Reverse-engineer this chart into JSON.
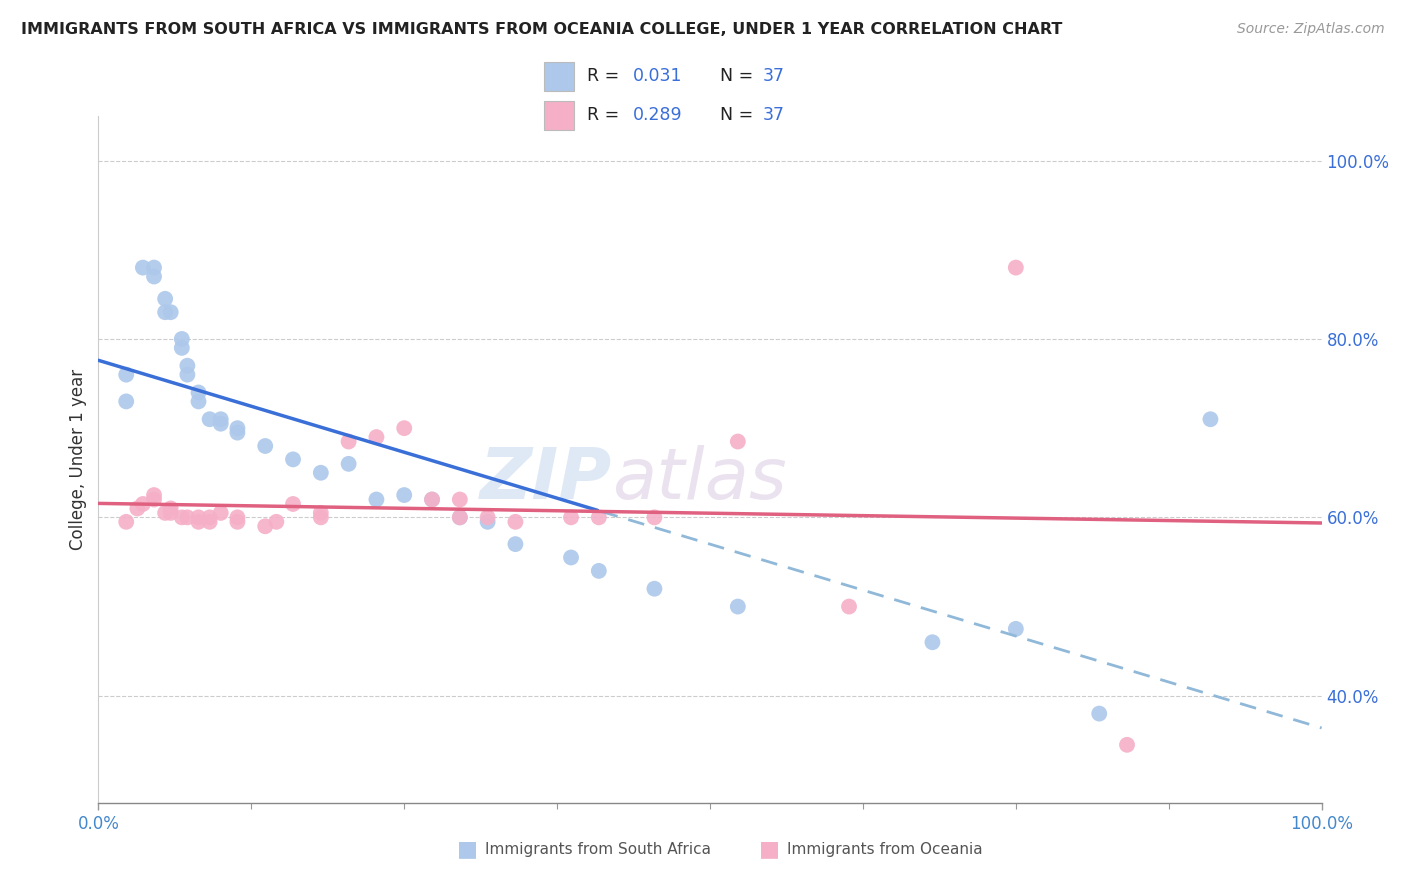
{
  "title": "IMMIGRANTS FROM SOUTH AFRICA VS IMMIGRANTS FROM OCEANIA COLLEGE, UNDER 1 YEAR CORRELATION CHART",
  "source": "Source: ZipAtlas.com",
  "ylabel": "College, Under 1 year",
  "legend_label1": "Immigrants from South Africa",
  "legend_label2": "Immigrants from Oceania",
  "R1": "0.031",
  "N1": "37",
  "R2": "0.289",
  "N2": "37",
  "color_blue": "#adc8ea",
  "color_pink": "#f5b0c8",
  "line_color_blue": "#3a6fd8",
  "line_color_pink": "#e06080",
  "line_color_dash": "#90b8d8",
  "watermark_zip": "ZIP",
  "watermark_atlas": "atlas",
  "yaxis_labels": [
    "40.0%",
    "60.0%",
    "80.0%",
    "100.0%"
  ],
  "yaxis_values": [
    0.4,
    0.6,
    0.8,
    1.0
  ],
  "blue_x": [
    0.005,
    0.005,
    0.008,
    0.01,
    0.01,
    0.012,
    0.012,
    0.013,
    0.015,
    0.015,
    0.016,
    0.016,
    0.018,
    0.018,
    0.02,
    0.022,
    0.022,
    0.025,
    0.025,
    0.03,
    0.035,
    0.04,
    0.045,
    0.05,
    0.055,
    0.06,
    0.065,
    0.07,
    0.075,
    0.085,
    0.09,
    0.1,
    0.115,
    0.15,
    0.165,
    0.18,
    0.2
  ],
  "blue_y": [
    0.73,
    0.76,
    0.88,
    0.87,
    0.88,
    0.83,
    0.845,
    0.83,
    0.79,
    0.8,
    0.76,
    0.77,
    0.73,
    0.74,
    0.71,
    0.705,
    0.71,
    0.695,
    0.7,
    0.68,
    0.665,
    0.65,
    0.66,
    0.62,
    0.625,
    0.62,
    0.6,
    0.595,
    0.57,
    0.555,
    0.54,
    0.52,
    0.5,
    0.46,
    0.475,
    0.38,
    0.71
  ],
  "pink_x": [
    0.005,
    0.007,
    0.008,
    0.01,
    0.01,
    0.012,
    0.013,
    0.013,
    0.015,
    0.016,
    0.018,
    0.018,
    0.02,
    0.02,
    0.022,
    0.025,
    0.025,
    0.03,
    0.032,
    0.035,
    0.04,
    0.04,
    0.045,
    0.05,
    0.055,
    0.06,
    0.065,
    0.065,
    0.07,
    0.075,
    0.085,
    0.09,
    0.1,
    0.115,
    0.135,
    0.165,
    0.185
  ],
  "pink_y": [
    0.595,
    0.61,
    0.615,
    0.62,
    0.625,
    0.605,
    0.605,
    0.61,
    0.6,
    0.6,
    0.595,
    0.6,
    0.595,
    0.6,
    0.605,
    0.6,
    0.595,
    0.59,
    0.595,
    0.615,
    0.6,
    0.605,
    0.685,
    0.69,
    0.7,
    0.62,
    0.6,
    0.62,
    0.6,
    0.595,
    0.6,
    0.6,
    0.6,
    0.685,
    0.5,
    0.88,
    0.345
  ],
  "xlim": [
    0.0,
    0.22
  ],
  "ylim": [
    0.28,
    1.05
  ],
  "xaxis_ticks": [
    0.0,
    0.22
  ],
  "xaxis_labels": [
    "0.0%",
    "100.0%"
  ]
}
